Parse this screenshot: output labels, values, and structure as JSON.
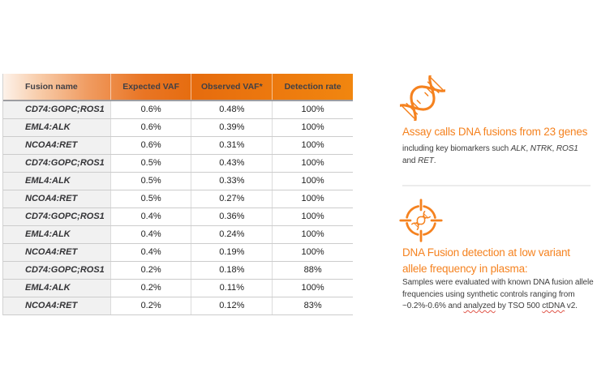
{
  "colors": {
    "accent_orange": "#f5821f",
    "header_gradient_start": "#fdf2ea",
    "header_gradient_end": "#f1860f",
    "header_text": "#414046",
    "row_name_bg": "#f1f1f1",
    "row_border": "#cccccc",
    "body_text": "#3d3d3d",
    "spellcheck_underline": "#e0564a"
  },
  "table": {
    "columns": [
      "Fusion name",
      "Expected VAF",
      "Observed VAF*",
      "Detection rate"
    ],
    "rows": [
      [
        "CD74:GOPC;ROS1",
        "0.6%",
        "0.48%",
        "100%"
      ],
      [
        "EML4:ALK",
        "0.6%",
        "0.39%",
        "100%"
      ],
      [
        "NCOA4:RET",
        "0.6%",
        "0.31%",
        "100%"
      ],
      [
        "CD74:GOPC;ROS1",
        "0.5%",
        "0.43%",
        "100%"
      ],
      [
        "EML4:ALK",
        "0.5%",
        "0.33%",
        "100%"
      ],
      [
        "NCOA4:RET",
        "0.5%",
        "0.27%",
        "100%"
      ],
      [
        "CD74:GOPC;ROS1",
        "0.4%",
        "0.36%",
        "100%"
      ],
      [
        "EML4:ALK",
        "0.4%",
        "0.24%",
        "100%"
      ],
      [
        "NCOA4:RET",
        "0.4%",
        "0.19%",
        "100%"
      ],
      [
        "CD74:GOPC;ROS1",
        "0.2%",
        "0.18%",
        "88%"
      ],
      [
        "EML4:ALK",
        "0.2%",
        "0.11%",
        "100%"
      ],
      [
        "NCOA4:RET",
        "0.2%",
        "0.12%",
        "83%"
      ]
    ]
  },
  "info_sections": [
    {
      "icon": "dna-helix-icon",
      "headline_segments": [
        {
          "t": "Assay calls DNA fusions from 23 genes"
        }
      ],
      "body_segments": [
        {
          "t": "including key biomarkers such "
        },
        {
          "t": "ALK",
          "italic": true
        },
        {
          "t": ", "
        },
        {
          "t": "NTRK",
          "italic": true
        },
        {
          "t": ", "
        },
        {
          "t": "ROS1",
          "italic": true
        },
        {
          "br": true
        },
        {
          "t": "and "
        },
        {
          "t": "RET",
          "italic": true
        },
        {
          "t": "."
        }
      ]
    },
    {
      "icon": "dna-target-icon",
      "headline_segments": [
        {
          "t": "DNA Fusion detection at low variant"
        },
        {
          "br": true
        },
        {
          "t": "allele frequency in plasma:"
        }
      ],
      "body_segments": [
        {
          "t": "Samples were evaluated with known DNA fusion allele"
        },
        {
          "br": true
        },
        {
          "t": "frequencies using synthetic controls ranging from"
        },
        {
          "br": true
        },
        {
          "t": "~0.2%-0.6% and "
        },
        {
          "t": "analyzed",
          "wavy": true
        },
        {
          "t": " by TSO 500 "
        },
        {
          "t": "ctDNA",
          "wavy": true
        },
        {
          "t": " v2."
        }
      ]
    }
  ]
}
